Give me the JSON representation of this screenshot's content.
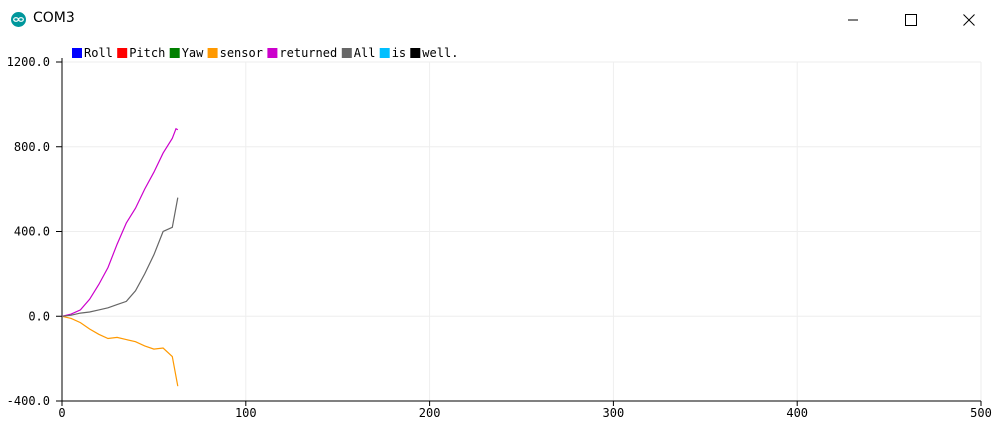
{
  "window": {
    "title": "COM3",
    "icon": "arduino-logo-icon",
    "controls": [
      "minimize-icon",
      "maximize-icon",
      "close-icon"
    ]
  },
  "chart_data": {
    "type": "line",
    "title": "",
    "xlabel": "",
    "ylabel": "",
    "xlim": [
      0,
      500
    ],
    "ylim": [
      -400,
      1200
    ],
    "x_ticks": [
      0,
      100,
      200,
      300,
      400,
      500
    ],
    "y_ticks": [
      "1200.0",
      "800.0",
      "400.0",
      "0.0",
      "-400.0"
    ],
    "y_tick_values": [
      1200,
      800,
      400,
      0,
      -400
    ],
    "grid": true,
    "legend_position": "top-left",
    "legend": [
      {
        "name": "Roll",
        "color": "#0000ff"
      },
      {
        "name": "Pitch",
        "color": "#ff0000"
      },
      {
        "name": "Yaw",
        "color": "#008000"
      },
      {
        "name": "sensor",
        "color": "#ff9900"
      },
      {
        "name": "returned",
        "color": "#cc00cc"
      },
      {
        "name": "All",
        "color": "#666666"
      },
      {
        "name": "is",
        "color": "#00bfff"
      },
      {
        "name": "well.",
        "color": "#000000"
      }
    ],
    "series": [
      {
        "name": "sensor",
        "color": "#ff9900",
        "x": [
          0,
          5,
          10,
          15,
          20,
          25,
          30,
          35,
          40,
          45,
          50,
          55,
          60,
          63
        ],
        "y": [
          0,
          -10,
          -30,
          -60,
          -85,
          -105,
          -100,
          -110,
          -120,
          -140,
          -155,
          -150,
          -190,
          -330
        ]
      },
      {
        "name": "returned",
        "color": "#cc00cc",
        "x": [
          0,
          5,
          10,
          15,
          20,
          25,
          30,
          35,
          40,
          45,
          50,
          55,
          60,
          62,
          63
        ],
        "y": [
          0,
          10,
          30,
          80,
          150,
          230,
          340,
          440,
          510,
          600,
          680,
          770,
          840,
          885,
          880
        ]
      },
      {
        "name": "All",
        "color": "#666666",
        "x": [
          0,
          5,
          10,
          15,
          20,
          25,
          30,
          35,
          40,
          45,
          50,
          55,
          60,
          63
        ],
        "y": [
          0,
          5,
          15,
          20,
          30,
          40,
          55,
          70,
          120,
          200,
          290,
          400,
          420,
          560
        ]
      }
    ]
  }
}
